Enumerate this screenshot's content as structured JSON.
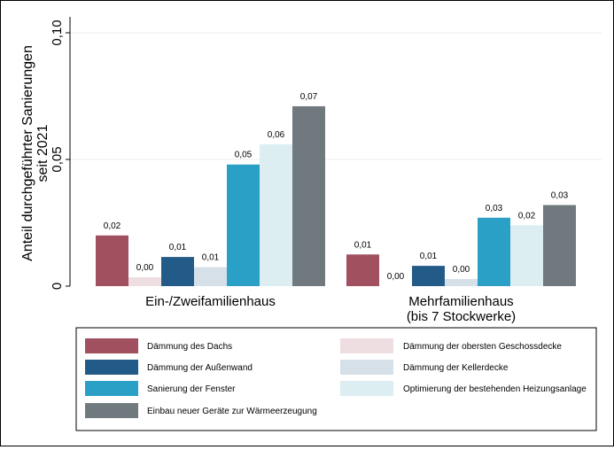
{
  "chart_data": {
    "type": "bar",
    "ylabel_lines": [
      "Anteil durchgeführter Sanierungen",
      "seit 2021"
    ],
    "ylim": [
      0,
      0.1
    ],
    "yticks": [
      {
        "value": 0,
        "label": "0"
      },
      {
        "value": 0.05,
        "label": "0,05"
      },
      {
        "value": 0.1,
        "label": "0,10"
      }
    ],
    "grid": true,
    "categories": [
      {
        "lines": [
          "Ein-/Zweifamilienhaus"
        ]
      },
      {
        "lines": [
          "Mehrfamilienhaus",
          "(bis 7 Stockwerke)"
        ]
      }
    ],
    "series": [
      {
        "name": "Dämmung des Dachs",
        "color": "#A0505F",
        "values": [
          0.02,
          0.0125
        ],
        "labels": [
          "0,02",
          "0,01"
        ]
      },
      {
        "name": "Dämmung der obersten Geschossdecke",
        "color": "#EEDDE1",
        "values": [
          0.0035,
          0.0
        ],
        "labels": [
          "0,00",
          "0,00"
        ]
      },
      {
        "name": "Dämmung der Außenwand",
        "color": "#235B88",
        "values": [
          0.0115,
          0.008
        ],
        "labels": [
          "0,01",
          "0,01"
        ]
      },
      {
        "name": "Dämmung der Kellerdecke",
        "color": "#D6E0E8",
        "values": [
          0.0075,
          0.0028
        ],
        "labels": [
          "0,01",
          "0,00"
        ]
      },
      {
        "name": "Sanierung der Fenster",
        "color": "#2AA0C6",
        "values": [
          0.048,
          0.027
        ],
        "labels": [
          "0,05",
          "0,03"
        ]
      },
      {
        "name": "Optimierung der bestehenden Heizungsanlage",
        "color": "#DCEEF2",
        "values": [
          0.056,
          0.024
        ],
        "labels": [
          "0,06",
          "0,02"
        ]
      },
      {
        "name": "Einbau neuer Geräte zur Wärmeerzeugung",
        "color": "#707A7E",
        "values": [
          0.071,
          0.032
        ],
        "labels": [
          "0,07",
          "0,03"
        ]
      }
    ],
    "legend": {
      "placement": "bottom",
      "order": [
        [
          "Dämmung des Dachs",
          "Dämmung der obersten Geschossdecke"
        ],
        [
          "Dämmung der Außenwand",
          "Dämmung der Kellerdecke"
        ],
        [
          "Sanierung der Fenster",
          "Optimierung der bestehenden Heizungsanlage"
        ],
        [
          "Einbau neuer Geräte zur Wärmeerzeugung",
          ""
        ]
      ]
    }
  }
}
